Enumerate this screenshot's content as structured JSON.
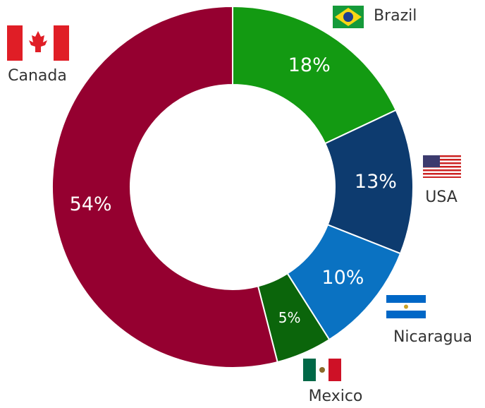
{
  "chart_data": {
    "type": "donut",
    "categories": [
      "Brazil",
      "USA",
      "Nicaragua",
      "Mexico",
      "Canada"
    ],
    "values": [
      18,
      13,
      10,
      5,
      54
    ],
    "value_labels": [
      "18%",
      "13%",
      "10%",
      "5%",
      "54%"
    ],
    "colors": [
      "#139a12",
      "#0d3b6f",
      "#0a72c2",
      "#0b650b",
      "#950030"
    ]
  }
}
